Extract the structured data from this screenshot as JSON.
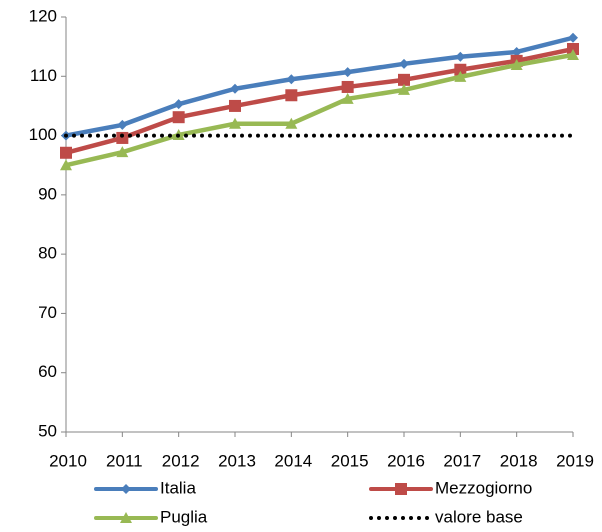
{
  "chart_data": {
    "type": "line",
    "categories": [
      "2010",
      "2011",
      "2012",
      "2013",
      "2014",
      "2015",
      "2016",
      "2017",
      "2018",
      "2019"
    ],
    "series": [
      {
        "name": "Italia",
        "color": "#4a7ebb",
        "marker": "diamond",
        "values": [
          100,
          101.8,
          105.3,
          107.9,
          109.5,
          110.7,
          112.1,
          113.3,
          114.1,
          116.5
        ]
      },
      {
        "name": "Mezzogiorno",
        "color": "#be4b48",
        "marker": "square",
        "values": [
          97.1,
          99.6,
          103.1,
          105.0,
          106.8,
          108.2,
          109.4,
          111.1,
          112.6,
          114.6
        ]
      },
      {
        "name": "Puglia",
        "color": "#98b954",
        "marker": "triangle",
        "values": [
          95.0,
          97.2,
          100.1,
          102.0,
          102.0,
          106.2,
          107.7,
          109.9,
          111.9,
          113.6
        ]
      },
      {
        "name": "valore base",
        "color": "#000000",
        "marker": "none",
        "dash": "dotted",
        "values": [
          100,
          100,
          100,
          100,
          100,
          100,
          100,
          100,
          100,
          100
        ]
      }
    ],
    "ylim": [
      50,
      120
    ],
    "yticks": [
      50,
      60,
      70,
      80,
      90,
      100,
      110,
      120
    ],
    "grid": false
  }
}
